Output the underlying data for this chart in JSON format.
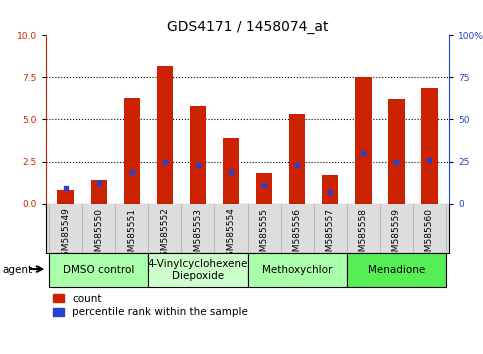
{
  "title": "GDS4171 / 1458074_at",
  "samples": [
    "GSM585549",
    "GSM585550",
    "GSM585551",
    "GSM585552",
    "GSM585553",
    "GSM585554",
    "GSM585555",
    "GSM585556",
    "GSM585557",
    "GSM585558",
    "GSM585559",
    "GSM585560"
  ],
  "red_values": [
    0.8,
    1.4,
    6.3,
    8.2,
    5.8,
    3.9,
    1.8,
    5.3,
    1.7,
    7.5,
    6.2,
    6.9
  ],
  "blue_values": [
    0.9,
    1.2,
    1.9,
    2.5,
    2.3,
    1.9,
    1.1,
    2.3,
    0.7,
    3.0,
    2.5,
    2.6
  ],
  "bar_color": "#cc2200",
  "blue_color": "#2244cc",
  "ylim_left": [
    0,
    10
  ],
  "ylim_right": [
    0,
    100
  ],
  "yticks_left": [
    0,
    2.5,
    5.0,
    7.5,
    10
  ],
  "yticks_right": [
    0,
    25,
    50,
    75,
    100
  ],
  "groups": [
    {
      "label": "DMSO control",
      "start": 0,
      "end": 3,
      "color": "#aaffaa"
    },
    {
      "label": "4-Vinylcyclohexene\nDiepoxide",
      "start": 3,
      "end": 6,
      "color": "#ccffcc"
    },
    {
      "label": "Methoxychlor",
      "start": 6,
      "end": 9,
      "color": "#aaffaa"
    },
    {
      "label": "Menadione",
      "start": 9,
      "end": 12,
      "color": "#55ee55"
    }
  ],
  "legend_count_label": "count",
  "legend_pct_label": "percentile rank within the sample",
  "agent_label": "agent",
  "bar_width": 0.5,
  "title_fontsize": 10,
  "tick_fontsize": 6.5,
  "label_fontsize": 7.5,
  "group_label_fontsize": 7.5
}
